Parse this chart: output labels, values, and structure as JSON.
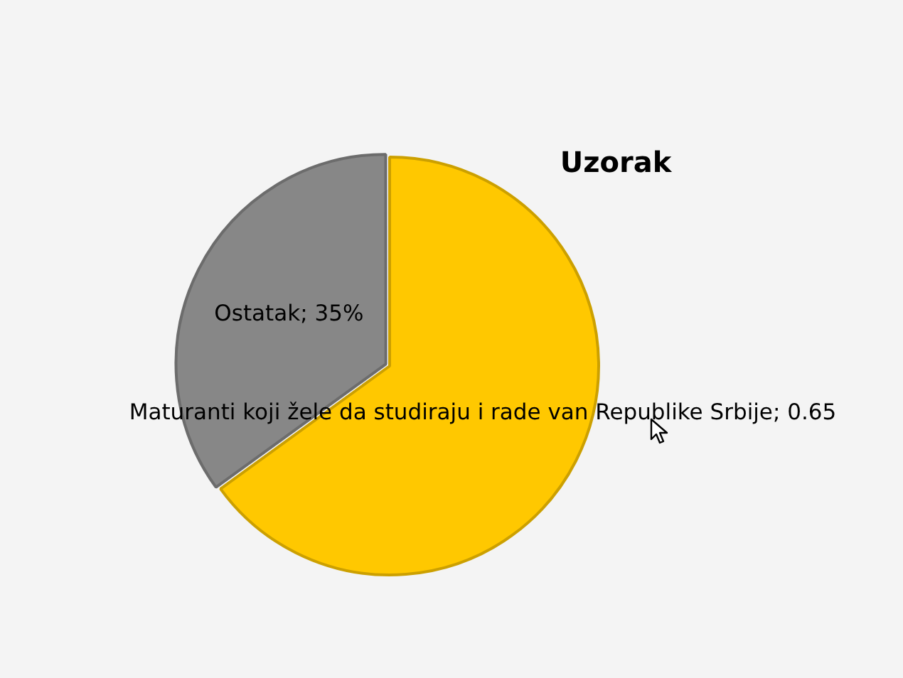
{
  "chart_data": {
    "type": "pie",
    "title": "Uzorak",
    "categories": [
      "Maturanti koji žele da studiraju i rade van Republike Srbije",
      "Ostatak"
    ],
    "values": [
      0.65,
      0.35
    ],
    "value_labels": [
      "0.65",
      "35%"
    ],
    "colors": [
      "#ffc800",
      "#878787"
    ],
    "legend": false
  }
}
